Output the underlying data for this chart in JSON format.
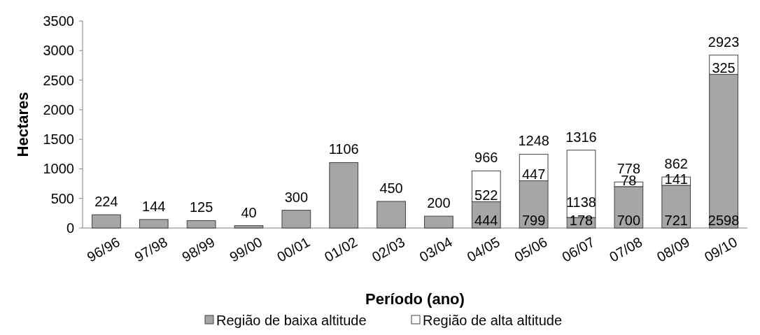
{
  "chart_data": {
    "type": "bar",
    "stacked": true,
    "xlabel": "Período (ano)",
    "ylabel": "Hectares",
    "categories": [
      "96/96",
      "97/98",
      "98/99",
      "99/00",
      "00/01",
      "01/02",
      "02/03",
      "03/04",
      "04/05",
      "05/06",
      "06/07",
      "07/08",
      "08/09",
      "09/10"
    ],
    "series": [
      {
        "name": "Região de baixa altitude",
        "color": "#a6a6a6",
        "values": [
          224,
          144,
          125,
          40,
          300,
          1106,
          450,
          200,
          444,
          799,
          178,
          700,
          721,
          2598
        ],
        "value_labels": [
          null,
          null,
          null,
          null,
          null,
          null,
          null,
          null,
          "444",
          "799",
          "178",
          "700",
          "721",
          "2598"
        ]
      },
      {
        "name": "Região de alta altitude",
        "color": "#ffffff",
        "values": [
          null,
          null,
          null,
          null,
          null,
          null,
          null,
          null,
          522,
          447,
          1138,
          78,
          141,
          325
        ],
        "value_labels": [
          null,
          null,
          null,
          null,
          null,
          null,
          null,
          null,
          "522",
          "447",
          "1138",
          "78",
          "141",
          "325"
        ]
      }
    ],
    "totals": [
      "224",
      "144",
      "125",
      "40",
      "300",
      "1106",
      "450",
      "200",
      "966",
      null,
      "1316",
      "778",
      "862",
      "2923"
    ],
    "annotations": [
      {
        "text": "1248",
        "x": "05/06",
        "y": 1248
      }
    ],
    "ylim": [
      0,
      3500
    ],
    "yticks": [
      0,
      500,
      1000,
      1500,
      2000,
      2500,
      3000,
      3500
    ],
    "grid": false,
    "legend": "bottom"
  }
}
